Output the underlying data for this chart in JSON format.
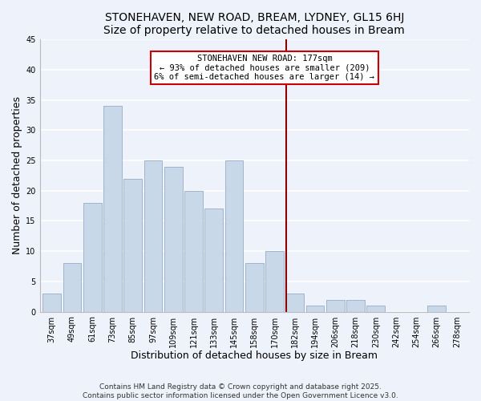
{
  "title": "STONEHAVEN, NEW ROAD, BREAM, LYDNEY, GL15 6HJ",
  "subtitle": "Size of property relative to detached houses in Bream",
  "xlabel": "Distribution of detached houses by size in Bream",
  "ylabel": "Number of detached properties",
  "bin_labels": [
    "37sqm",
    "49sqm",
    "61sqm",
    "73sqm",
    "85sqm",
    "97sqm",
    "109sqm",
    "121sqm",
    "133sqm",
    "145sqm",
    "158sqm",
    "170sqm",
    "182sqm",
    "194sqm",
    "206sqm",
    "218sqm",
    "230sqm",
    "242sqm",
    "254sqm",
    "266sqm",
    "278sqm"
  ],
  "bar_values": [
    3,
    8,
    18,
    34,
    22,
    25,
    24,
    20,
    17,
    25,
    8,
    10,
    3,
    1,
    2,
    2,
    1,
    0,
    0,
    1,
    0
  ],
  "bar_color": "#c8d8e8",
  "bar_edge_color": "#a0b4cc",
  "marker_line_color": "#8b0000",
  "annotation_line1": "STONEHAVEN NEW ROAD: 177sqm",
  "annotation_line2": "← 93% of detached houses are smaller (209)",
  "annotation_line3": "6% of semi-detached houses are larger (14) →",
  "annotation_box_color": "#ffffff",
  "annotation_box_edge": "#cc0000",
  "ylim": [
    0,
    45
  ],
  "footer1": "Contains HM Land Registry data © Crown copyright and database right 2025.",
  "footer2": "Contains public sector information licensed under the Open Government Licence v3.0.",
  "background_color": "#eef2fb",
  "grid_color": "#ffffff",
  "title_fontsize": 10,
  "subtitle_fontsize": 9.5,
  "axis_label_fontsize": 9,
  "tick_fontsize": 7,
  "footer_fontsize": 6.5
}
